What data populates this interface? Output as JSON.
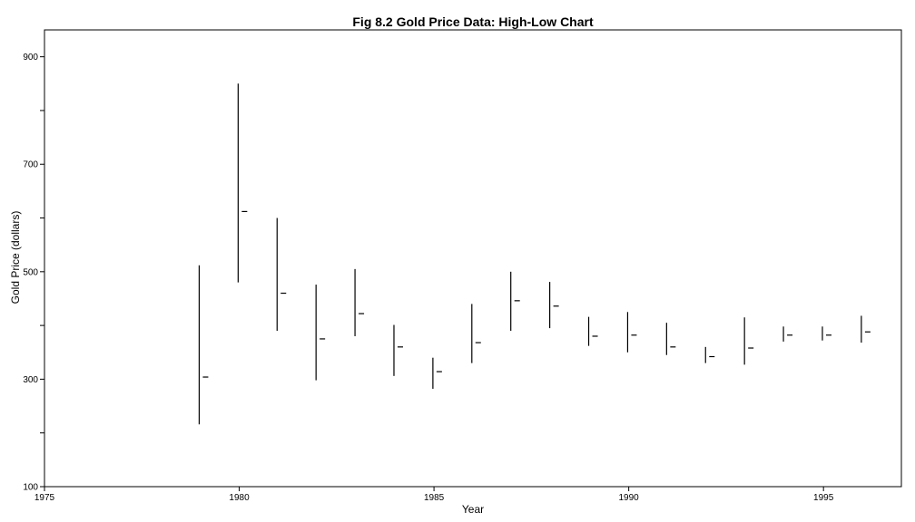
{
  "chart_data": {
    "type": "high-low",
    "title": "Fig 8.2 Gold Price Data: High-Low Chart",
    "xlabel": "Year",
    "ylabel": "Gold Price (dollars)",
    "xlim": [
      1975,
      1997
    ],
    "ylim": [
      100,
      950
    ],
    "x_ticks": [
      1975,
      1980,
      1985,
      1990,
      1995
    ],
    "x_tick_labels": [
      "1975",
      "1980",
      "1985",
      "1990",
      "1995"
    ],
    "y_ticks": [
      100,
      200,
      300,
      400,
      500,
      600,
      700,
      800,
      900
    ],
    "y_tick_labels": [
      "100",
      "",
      "300",
      "",
      "500",
      "",
      "700",
      "",
      "900"
    ],
    "grid": false,
    "series": [
      {
        "x": [
          1979,
          1980,
          1981,
          1982,
          1983,
          1984,
          1985,
          1986,
          1987,
          1988,
          1989,
          1990,
          1991,
          1992,
          1993,
          1994,
          1995,
          1996
        ],
        "high": [
          512,
          850,
          600,
          476,
          505,
          401,
          340,
          440,
          500,
          481,
          416,
          425,
          405,
          360,
          415,
          398,
          398,
          418
        ],
        "low": [
          216,
          480,
          390,
          298,
          380,
          306,
          282,
          330,
          390,
          395,
          362,
          350,
          345,
          330,
          327,
          370,
          372,
          368
        ],
        "close": [
          304,
          612,
          460,
          375,
          422,
          360,
          314,
          368,
          446,
          436,
          380,
          382,
          360,
          342,
          358,
          382,
          382,
          388
        ]
      }
    ]
  }
}
